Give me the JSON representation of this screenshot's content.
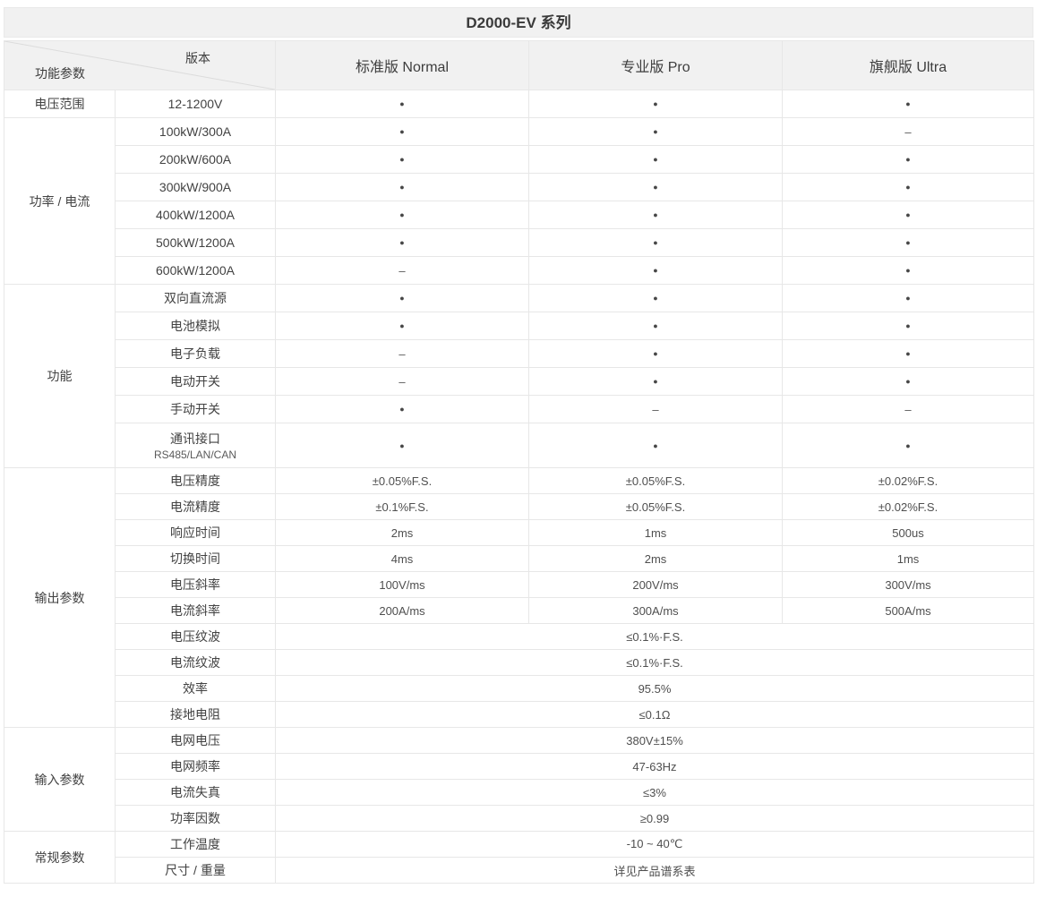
{
  "title": "D2000-EV 系列",
  "header": {
    "corner_top": "版本",
    "corner_bottom": "功能参数",
    "columns": [
      "标准版 Normal",
      "专业版 Pro",
      "旗舰版 Ultra"
    ]
  },
  "symbols": {
    "yes": "●",
    "no": "–"
  },
  "groups": [
    {
      "name": "电压范围",
      "rows": [
        {
          "param": "12-1200V",
          "values": [
            "●",
            "●",
            "●"
          ]
        }
      ]
    },
    {
      "name": "功率 / 电流",
      "rows": [
        {
          "param": "100kW/300A",
          "values": [
            "●",
            "●",
            "–"
          ]
        },
        {
          "param": "200kW/600A",
          "values": [
            "●",
            "●",
            "●"
          ]
        },
        {
          "param": "300kW/900A",
          "values": [
            "●",
            "●",
            "●"
          ]
        },
        {
          "param": "400kW/1200A",
          "values": [
            "●",
            "●",
            "●"
          ]
        },
        {
          "param": "500kW/1200A",
          "values": [
            "●",
            "●",
            "●"
          ]
        },
        {
          "param": "600kW/1200A",
          "values": [
            "–",
            "●",
            "●"
          ]
        }
      ]
    },
    {
      "name": "功能",
      "rows": [
        {
          "param": "双向直流源",
          "values": [
            "●",
            "●",
            "●"
          ]
        },
        {
          "param": "电池模拟",
          "values": [
            "●",
            "●",
            "●"
          ]
        },
        {
          "param": "电子负载",
          "values": [
            "–",
            "●",
            "●"
          ]
        },
        {
          "param": "电动开关",
          "values": [
            "–",
            "●",
            "●"
          ]
        },
        {
          "param": "手动开关",
          "values": [
            "●",
            "–",
            "–"
          ]
        },
        {
          "param": "通讯接口",
          "param_sub": "RS485/LAN/CAN",
          "tall": true,
          "values": [
            "●",
            "●",
            "●"
          ]
        }
      ]
    },
    {
      "name": "输出参数",
      "rows": [
        {
          "param": "电压精度",
          "values": [
            "±0.05%F.S.",
            "±0.05%F.S.",
            "±0.02%F.S."
          ]
        },
        {
          "param": "电流精度",
          "values": [
            "±0.1%F.S.",
            "±0.05%F.S.",
            "±0.02%F.S."
          ]
        },
        {
          "param": "响应时间",
          "values": [
            "2ms",
            "1ms",
            "500us"
          ]
        },
        {
          "param": "切换时间",
          "values": [
            "4ms",
            "2ms",
            "1ms"
          ]
        },
        {
          "param": "电压斜率",
          "values": [
            "100V/ms",
            "200V/ms",
            "300V/ms"
          ]
        },
        {
          "param": "电流斜率",
          "values": [
            "200A/ms",
            "300A/ms",
            "500A/ms"
          ]
        },
        {
          "param": "电压纹波",
          "span_value": "≤0.1%·F.S."
        },
        {
          "param": "电流纹波",
          "span_value": "≤0.1%·F.S."
        },
        {
          "param": "效率",
          "span_value": "95.5%"
        },
        {
          "param": "接地电阻",
          "span_value": "≤0.1Ω"
        }
      ]
    },
    {
      "name": "输入参数",
      "rows": [
        {
          "param": "电网电压",
          "span_value": "380V±15%"
        },
        {
          "param": "电网频率",
          "span_value": "47-63Hz"
        },
        {
          "param": "电流失真",
          "span_value": "≤3%"
        },
        {
          "param": "功率因数",
          "span_value": "≥0.99"
        }
      ]
    },
    {
      "name": "常规参数",
      "rows": [
        {
          "param": "工作温度",
          "span_value": "-10 ~ 40℃"
        },
        {
          "param": "尺寸 / 重量",
          "span_value": "详见产品谱系表"
        }
      ]
    }
  ],
  "colors": {
    "header_bg": "#f1f1f1",
    "border": "#e7e7e7",
    "text": "#404040",
    "dot": "#474747",
    "diagonal_line": "#dcdcdc"
  }
}
